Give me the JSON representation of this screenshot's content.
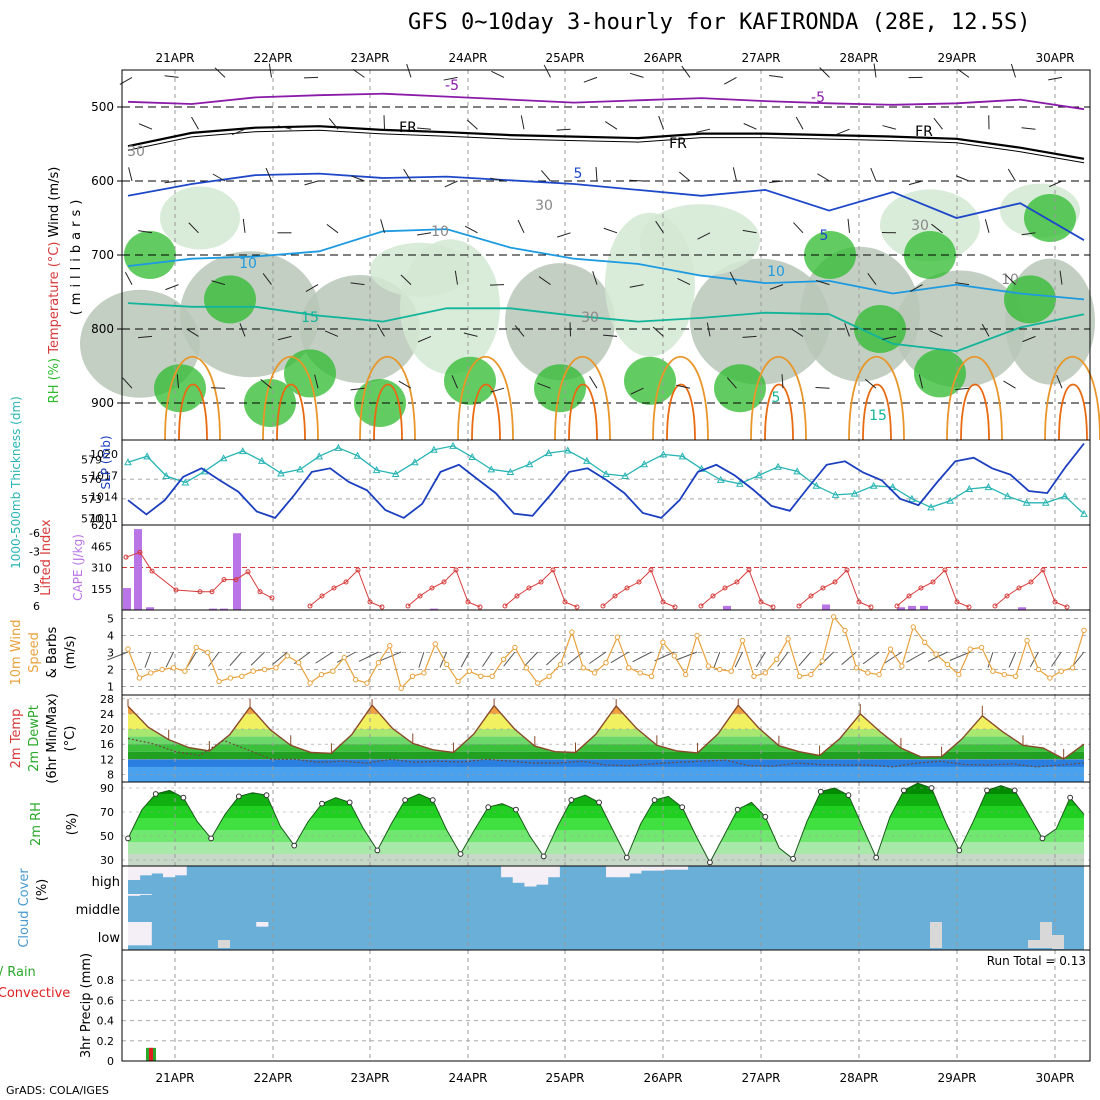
{
  "title": "GFS 0~10day 3-hourly for KAFIRONDA (28E, 12.5S)",
  "credit": "GrADS: COLA/IGES",
  "colors": {
    "rh_green": "#2dbb2d",
    "rh_light": "#d2e8d2",
    "rh_gray": "#b9c7b9",
    "temp_purple": "#8a1aa8",
    "temp_blue": "#1e48c8",
    "temp_lightblue": "#1e9ae0",
    "temp_teal": "#12b49a",
    "temp_orange": "#e8962a",
    "temp_darkorange": "#e86a12",
    "slp_blue": "#1b3fbf",
    "thick_cyan": "#28b4b4",
    "li_red": "#d83a3a",
    "cape_purple": "#b974e6",
    "wind_orange": "#e8a23c",
    "cloud_blue": "#6aafd8",
    "precip_green": "#2ba82b",
    "precip_red": "#e02020"
  },
  "chart_data": [
    {
      "type": "line",
      "panel": "upper-air cross-section",
      "x_dates": [
        "21APR",
        "22APR",
        "23APR",
        "24APR",
        "25APR",
        "26APR",
        "27APR",
        "28APR",
        "29APR",
        "30APR"
      ],
      "ylabel_parts": [
        "RH (%)",
        "Temperature (°C)",
        "Wind (m/s)"
      ],
      "ylabel": "(millibars)",
      "yticks": [
        500,
        600,
        700,
        800,
        900
      ],
      "ylim": [
        450,
        950
      ],
      "contour_labels": [
        "-5",
        "-5",
        "FR",
        "FR",
        "FR",
        "5",
        "5",
        "10",
        "10",
        "15",
        "30",
        "30",
        "10",
        "30",
        "10",
        "30",
        "5",
        "15"
      ],
      "isotherms": [
        {
          "name": "-5",
          "values": [
            493,
            496,
            487,
            484,
            482,
            486,
            490,
            494,
            491,
            488,
            492,
            495,
            497,
            495,
            490,
            503
          ]
        },
        {
          "name": "FR",
          "values": [
            553,
            535,
            528,
            526,
            531,
            534,
            538,
            540,
            542,
            536,
            536,
            538,
            540,
            543,
            555,
            570
          ]
        },
        {
          "name": "5",
          "values": [
            620,
            604,
            592,
            590,
            596,
            594,
            599,
            604,
            612,
            620,
            612,
            640,
            615,
            650,
            630,
            680
          ]
        },
        {
          "name": "10",
          "values": [
            715,
            705,
            702,
            695,
            668,
            665,
            690,
            705,
            712,
            728,
            738,
            735,
            752,
            740,
            752,
            760
          ]
        },
        {
          "name": "15",
          "values": [
            765,
            770,
            770,
            782,
            790,
            772,
            772,
            782,
            790,
            785,
            778,
            780,
            820,
            830,
            798,
            780
          ]
        }
      ]
    },
    {
      "type": "line",
      "panel": "SLP and thickness",
      "ylabel_left": "1000-500mb Thickness (dm)",
      "ylabel_right": "SLP (mb)",
      "yticks_left": [
        570,
        573,
        576,
        579
      ],
      "yticks_right": [
        1011,
        1014,
        1017,
        1020
      ],
      "series": [
        {
          "name": "Thickness",
          "values": [
            578.6,
            579.5,
            576.5,
            575.5,
            577.2,
            579.2,
            580.3,
            578.8,
            576.9,
            577.5,
            579.5,
            580.8,
            579.6,
            577.4,
            576.8,
            578.6,
            580.5,
            581.1,
            579.4,
            577.5,
            577.1,
            578.3,
            580.0,
            580.4,
            578.8,
            576.8,
            576.5,
            578.3,
            579.8,
            579.5,
            577.6,
            575.9,
            575.3,
            576.6,
            577.9,
            577.2,
            575.0,
            573.6,
            573.8,
            575.0,
            574.8,
            573.0,
            571.7,
            572.7,
            574.5,
            574.8,
            573.4,
            572.4,
            572.4,
            573.4,
            570.7
          ]
        },
        {
          "name": "SLP",
          "values": [
            1013.5,
            1011.5,
            1013.5,
            1016.8,
            1018.0,
            1016.3,
            1014.7,
            1011.9,
            1011.0,
            1014.1,
            1017.5,
            1018.0,
            1016.1,
            1014.9,
            1012.1,
            1011.0,
            1013.0,
            1017.5,
            1018.5,
            1016.5,
            1014.5,
            1011.6,
            1011.3,
            1014.3,
            1017.5,
            1018.0,
            1016.4,
            1014.5,
            1011.7,
            1011.0,
            1013.5,
            1017.5,
            1018.5,
            1017.0,
            1015.0,
            1012.7,
            1012.0,
            1015.3,
            1018.5,
            1019.0,
            1017.4,
            1016.3,
            1013.7,
            1012.8,
            1016.0,
            1019.0,
            1019.5,
            1018.0,
            1017.1,
            1014.8,
            1014.5,
            1018.2,
            1021.5
          ]
        }
      ]
    },
    {
      "type": "bar",
      "panel": "Lifted Index and CAPE",
      "ylabel_left": "Lifted Index",
      "ylabel_right": "CAPE (J/kg)",
      "yticks_left": [
        "-6",
        "-3",
        "0",
        "3",
        "6"
      ],
      "yticks_right": [
        155,
        310,
        465,
        620
      ],
      "series": [
        {
          "name": "Lifted Index",
          "values": [
            -1.7,
            -2.5,
            0.6,
            3.7,
            4.0,
            4.0,
            2.0,
            2.0,
            0.7,
            4.0,
            5.0
          ]
        },
        {
          "name": "CAPE",
          "values": [
            160,
            590,
            20,
            0,
            0,
            10,
            10,
            560,
            0,
            0,
            0
          ]
        }
      ]
    },
    {
      "type": "line",
      "panel": "10m wind",
      "ylabel_parts": [
        "10m Wind",
        "Speed",
        "& Barbs",
        "(m/s)"
      ],
      "yticks": [
        1,
        2,
        3,
        4,
        5
      ],
      "ylim": [
        0.5,
        5.5
      ],
      "series": [
        {
          "name": "Wind speed",
          "values": [
            3.2,
            1.5,
            1.8,
            2.0,
            2.1,
            1.9,
            3.3,
            3.0,
            1.3,
            1.5,
            1.6,
            1.9,
            2.0,
            2.1,
            2.8,
            2.4,
            1.2,
            1.7,
            1.9,
            2.7,
            1.4,
            1.2,
            2.4,
            3.4,
            0.9,
            1.6,
            1.8,
            3.5,
            2.3,
            1.3,
            1.9,
            1.6,
            1.6,
            2.6,
            3.3,
            2.1,
            1.2,
            1.6,
            2.3,
            4.2,
            2.1,
            1.8,
            2.4,
            3.9,
            2.1,
            1.8,
            1.6,
            3.6,
            2.8,
            1.7,
            4.0,
            2.2,
            2.0,
            1.9,
            3.7,
            1.6,
            1.8,
            2.6,
            3.8,
            1.6,
            1.7,
            2.5,
            5.1,
            4.3,
            2.1,
            1.8,
            1.7,
            3.2,
            2.2,
            4.5,
            3.6,
            2.9,
            2.3,
            1.7,
            3.2,
            3.3,
            1.9,
            1.7,
            1.6,
            3.7,
            2.0,
            1.5,
            1.9,
            2.1,
            4.3
          ]
        }
      ]
    },
    {
      "type": "area",
      "panel": "2m temperature",
      "ylabel_parts": [
        "2m Temp",
        "2m DewPt",
        "(6hr Min/Max)",
        "(°C)"
      ],
      "yticks": [
        8,
        12,
        16,
        20,
        24,
        28
      ],
      "ylim": [
        6,
        29
      ],
      "series": [
        {
          "name": "Temperature",
          "values": [
            26.0,
            20.5,
            17.2,
            15.1,
            14.2,
            18.5,
            25.8,
            19.8,
            15.7,
            13.8,
            13.6,
            18.5,
            26.3,
            20.2,
            16.2,
            14.5,
            13.8,
            18.7,
            26.2,
            20.0,
            15.5,
            14.0,
            13.8,
            18.6,
            26.1,
            20.2,
            15.7,
            14.2,
            13.7,
            18.7,
            26.3,
            20.3,
            15.6,
            14.0,
            13.0,
            17.5,
            24.0,
            19.2,
            15.0,
            12.6,
            12.7,
            17.4,
            23.5,
            19.3,
            15.7,
            15.0,
            12.1,
            16.0
          ]
        },
        {
          "name": "Dew point",
          "values": [
            17.5,
            16.2,
            14.0,
            13.0,
            17.0,
            14.5,
            12.0,
            12.0,
            11.2,
            11.5,
            11.0,
            12.0,
            11.2,
            11.5,
            11.3,
            12.0,
            11.5,
            11.0,
            11.0,
            11.5,
            10.5,
            10.3,
            10.8,
            11.2,
            11.5,
            11.8,
            10.3,
            10.2,
            11.0,
            10.6,
            10.5,
            10.5,
            10.0,
            11.0,
            11.5,
            10.6,
            10.5,
            10.8,
            10.0,
            10.5,
            11.0
          ]
        }
      ]
    },
    {
      "type": "area",
      "panel": "2m RH",
      "ylabel": "2m RH",
      "yunit": "(%)",
      "yticks": [
        30,
        50,
        70,
        90
      ],
      "ylim": [
        25,
        95
      ],
      "series": [
        {
          "name": "RH",
          "values": [
            48,
            72,
            85,
            88,
            82,
            62,
            48,
            68,
            83,
            86,
            84,
            58,
            42,
            62,
            77,
            82,
            78,
            56,
            38,
            60,
            80,
            85,
            80,
            55,
            35,
            55,
            74,
            77,
            72,
            50,
            33,
            58,
            80,
            84,
            78,
            55,
            32,
            60,
            80,
            83,
            74,
            50,
            28,
            50,
            72,
            78,
            66,
            40,
            31,
            62,
            87,
            90,
            84,
            58,
            32,
            66,
            88,
            94,
            90,
            62,
            38,
            62,
            88,
            92,
            88,
            68,
            48,
            56,
            82,
            68
          ]
        }
      ]
    },
    {
      "type": "bar",
      "panel": "Cloud cover",
      "ylabel": "Cloud Cover",
      "yunit": "(%)",
      "yticks": [
        "low",
        "middle",
        "high"
      ],
      "series": [
        {
          "name": "high",
          "values": [
            15,
            10,
            8,
            12,
            10,
            0,
            0,
            0,
            0,
            0,
            0,
            0,
            0,
            0,
            0,
            0,
            0,
            0,
            0,
            0,
            0,
            0,
            0,
            0,
            0,
            0,
            0,
            0,
            0,
            0,
            0,
            0,
            12,
            18,
            22,
            20,
            12,
            0,
            0,
            0,
            0,
            12,
            12,
            8,
            5,
            5,
            4,
            4,
            0,
            0,
            0,
            0,
            0,
            0,
            0,
            0,
            0,
            0,
            0,
            0,
            0,
            0,
            0,
            0,
            0,
            0,
            0,
            0,
            0,
            0,
            0,
            0,
            0,
            0,
            0,
            0,
            0,
            0,
            0,
            0,
            0,
            0
          ]
        },
        {
          "name": "middle",
          "values": [
            2,
            1,
            0,
            0,
            0,
            0,
            0,
            0,
            0,
            0,
            0,
            0,
            0,
            0,
            0,
            0,
            0,
            0,
            0,
            0,
            0,
            0,
            0,
            0,
            0,
            0,
            0,
            0,
            0,
            0,
            0,
            0,
            0,
            0,
            0,
            0,
            0,
            0,
            0,
            0,
            0,
            0,
            0,
            0,
            0,
            0,
            0,
            0,
            0,
            0,
            0,
            0,
            0,
            0,
            0,
            0,
            0,
            0,
            0,
            0,
            0,
            0,
            0,
            0,
            0,
            0,
            0,
            0,
            0,
            0,
            0,
            0,
            0,
            0,
            0,
            0,
            0,
            0,
            0,
            0,
            0,
            0
          ]
        },
        {
          "name": "low",
          "values": [
            25,
            25,
            0,
            0,
            0,
            0,
            0,
            0,
            0,
            0,
            0,
            5,
            0,
            0,
            0,
            0,
            0,
            0,
            0,
            0,
            0,
            0,
            0,
            0,
            0,
            0,
            0,
            0,
            0,
            0,
            0,
            0,
            0,
            0,
            0,
            0,
            0,
            0,
            0,
            0,
            0,
            0,
            0,
            0,
            0,
            0,
            0,
            0,
            0,
            0,
            0,
            0,
            0,
            0,
            0,
            0,
            0,
            0,
            0,
            0,
            0,
            0,
            0,
            0,
            0,
            0,
            0,
            0,
            0,
            0,
            0,
            0,
            0,
            0,
            0,
            0,
            0,
            0,
            0,
            0,
            0,
            0
          ]
        }
      ]
    },
    {
      "type": "bar",
      "panel": "3hr precipitation",
      "ylabel": "3hr Precip (mm)",
      "legend_total": "Total / Rain",
      "legend_convective": "Convective",
      "run_total_label": "Run Total = 0.13",
      "yticks": [
        0,
        0.2,
        0.4,
        0.6,
        0.8
      ],
      "ylim": [
        0,
        1.0
      ],
      "series": [
        {
          "name": "Total / Rain",
          "values": [
            0.13
          ]
        },
        {
          "name": "Convective",
          "values": [
            0.13
          ]
        }
      ]
    }
  ]
}
